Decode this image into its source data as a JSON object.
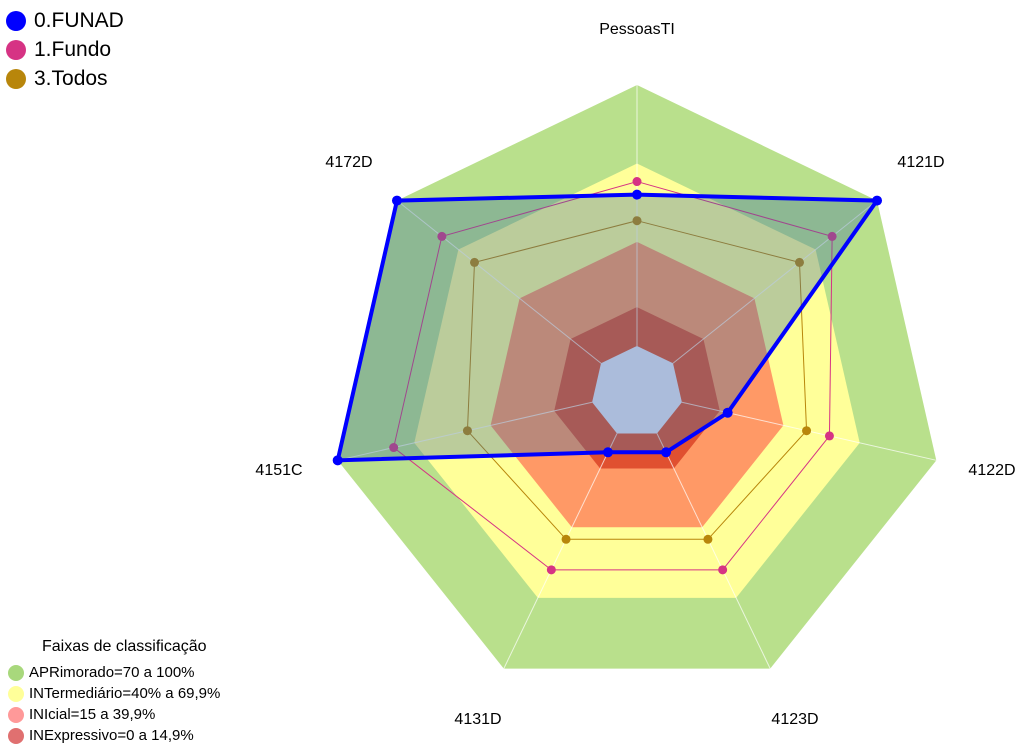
{
  "chart_data": {
    "type": "radar",
    "title": "",
    "axes": [
      "PessoasTI",
      "4121D",
      "4122D",
      "4123D",
      "4131D",
      "4151C",
      "4172D"
    ],
    "range": [
      0,
      100
    ],
    "series": [
      {
        "name": "0.FUNAD",
        "color": "#0000ff",
        "values": [
          58,
          100,
          18,
          8,
          8,
          100,
          100
        ]
      },
      {
        "name": "1.Fundo",
        "color": "#d63384",
        "values": [
          63,
          78,
          58,
          58,
          58,
          78,
          78
        ]
      },
      {
        "name": "3.Todos",
        "color": "#b8860b",
        "values": [
          48,
          62,
          49,
          45,
          45,
          49,
          62
        ]
      }
    ],
    "bands": [
      {
        "label": "APRimorado=70 a 100%",
        "color": "#b9e08c",
        "legend_color": "#a8d87c",
        "from": 70,
        "to": 100
      },
      {
        "label": "INTermediário=40% a 69,9%",
        "color": "#ffff99",
        "legend_color": "#ffff99",
        "from": 40,
        "to": 69.9
      },
      {
        "label": "INIcial=15 a 39,9%",
        "color": "#ff9966",
        "legend_color": "#ff9999",
        "from": 15,
        "to": 39.9
      },
      {
        "label": "INExpressivo=0 a 14,9%",
        "color": "#e05030",
        "legend_color": "#e07070",
        "from": 0,
        "to": 14.9
      }
    ],
    "band_legend_title": "Faixas de classificação"
  }
}
